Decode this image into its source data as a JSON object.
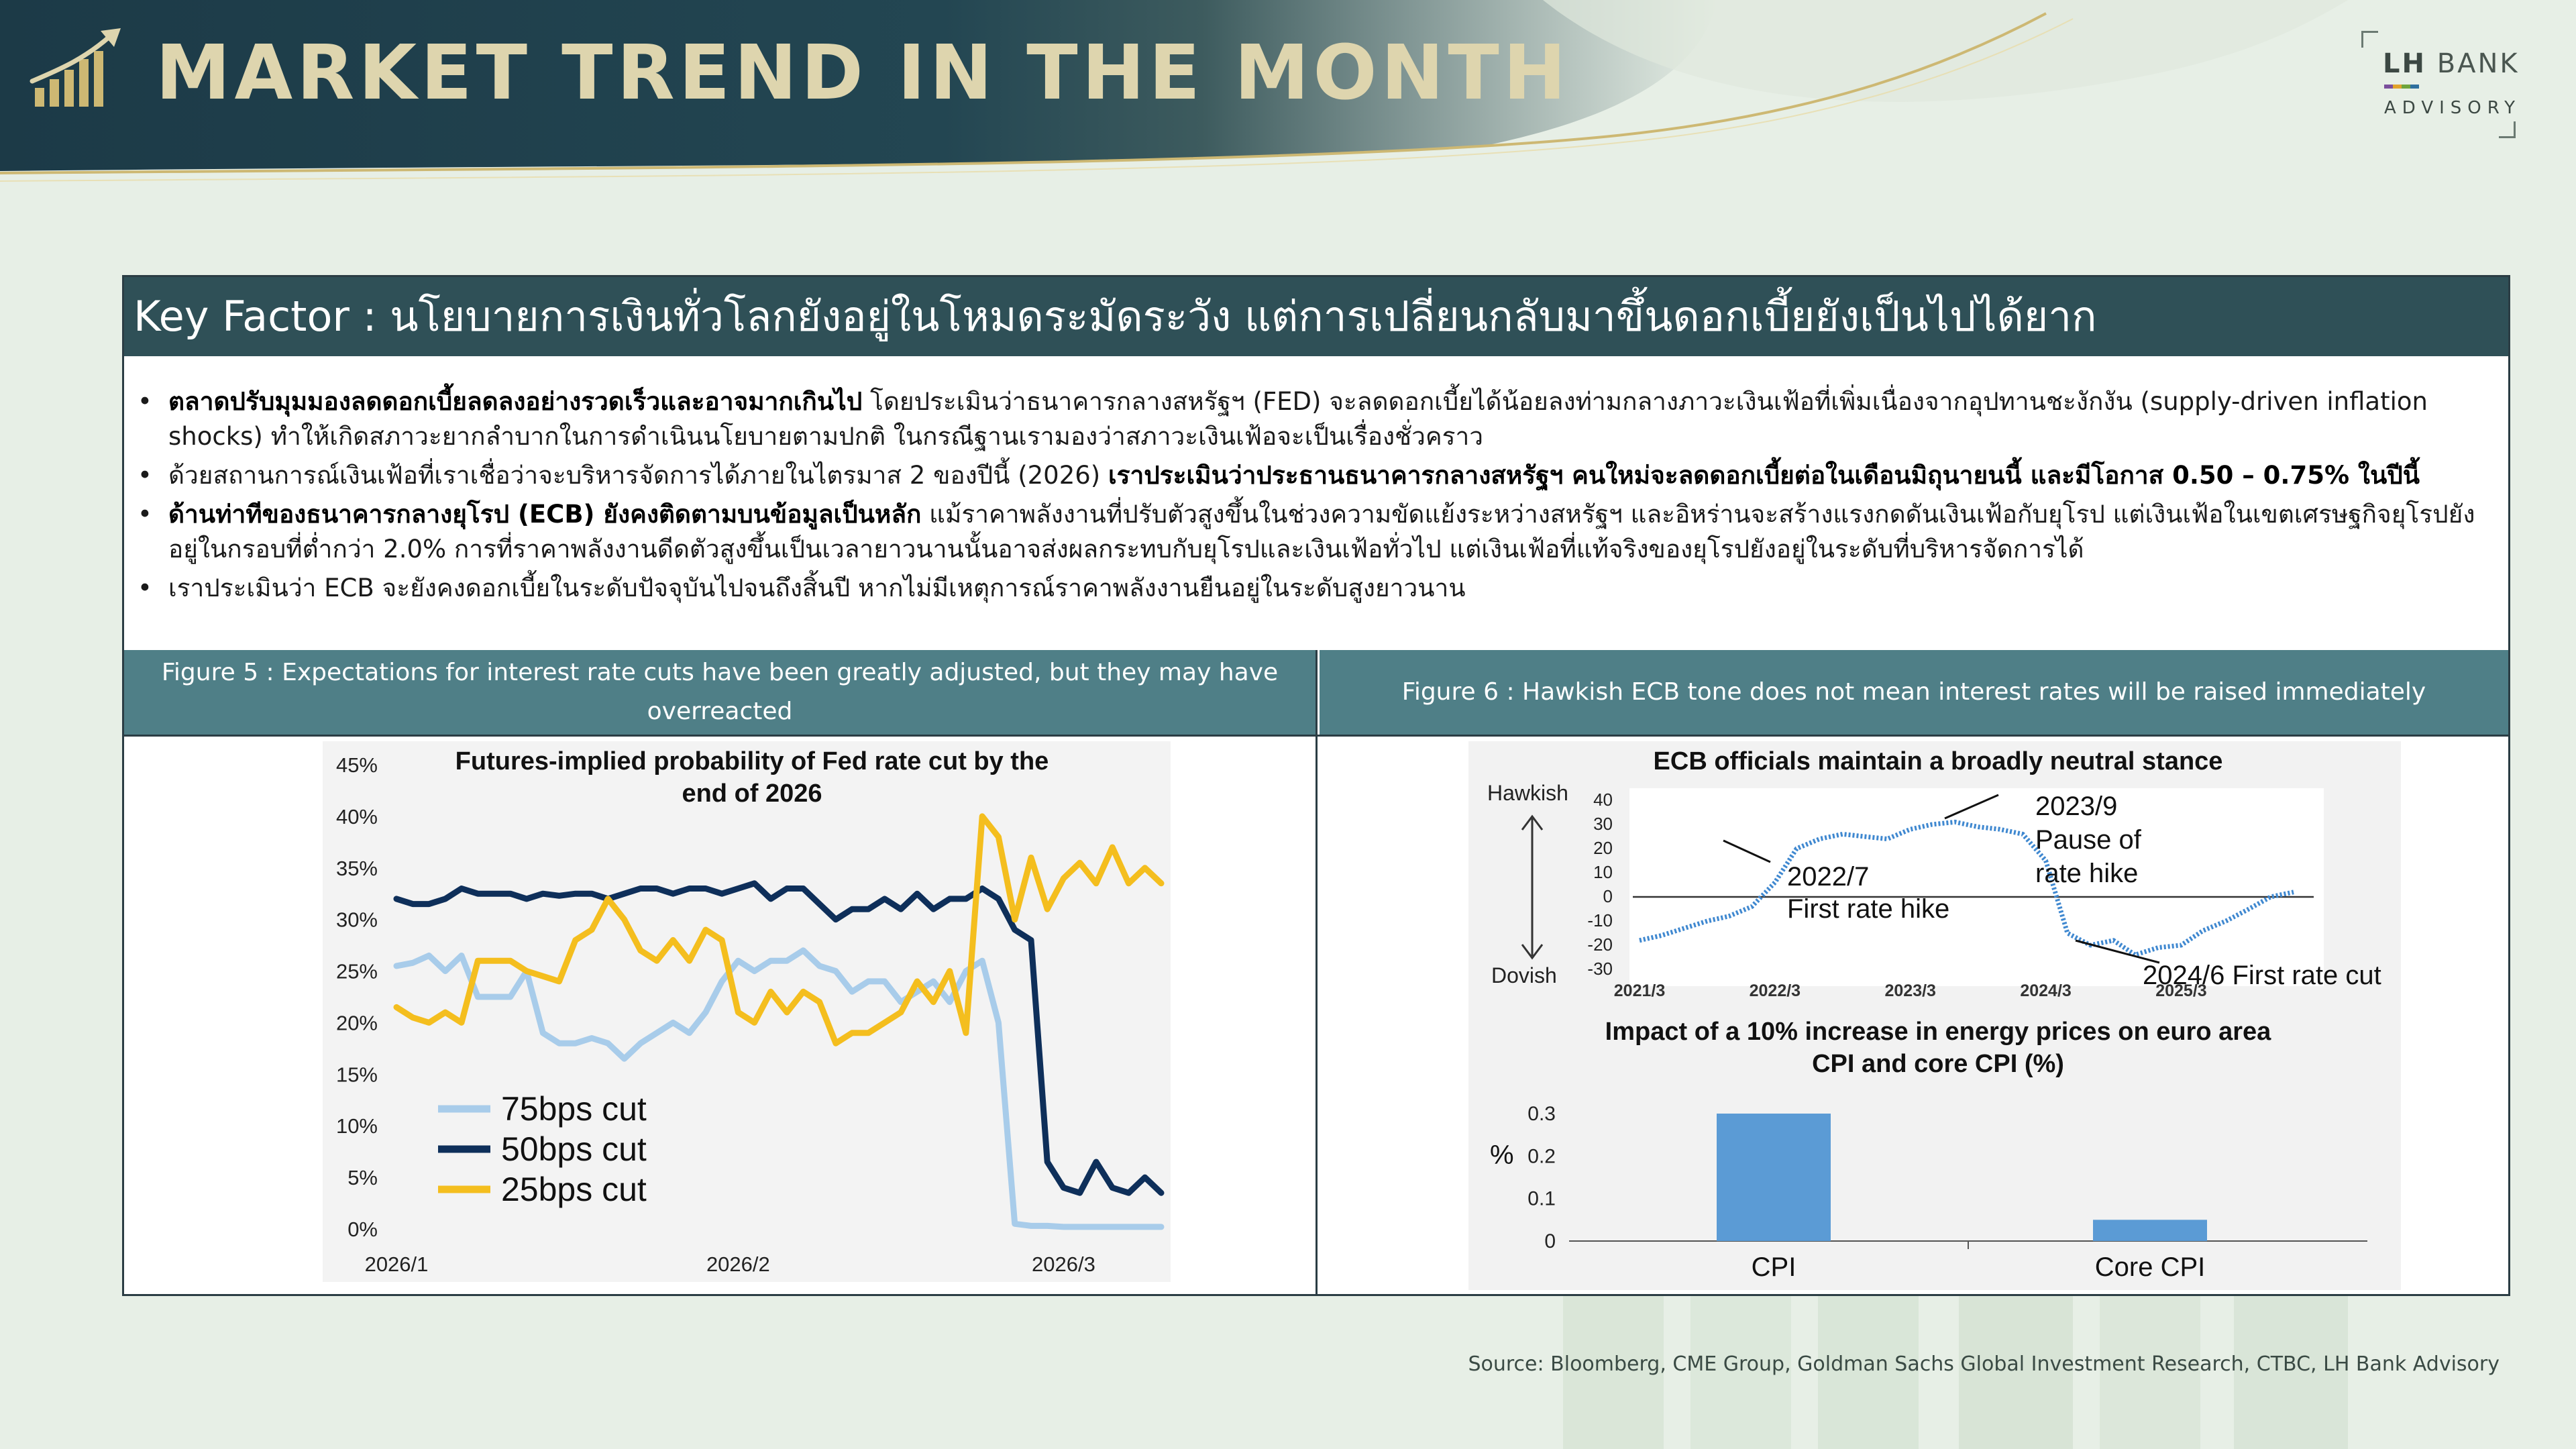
{
  "header": {
    "title": "MARKET TREND IN THE MONTH",
    "brand_lh": "LH",
    "brand_bank": "BANK",
    "brand_advisory": "ADVISORY",
    "brand_colors": [
      "#7a4f9c",
      "#e1a32b",
      "#6fa53c",
      "#2e6f9e"
    ],
    "title_color": "#ded5ae",
    "accent_gold": "#cdb873"
  },
  "key_factor": {
    "text": "Key Factor : นโยบายการเงินทั่วโลกยังอยู่ในโหมดระมัดระวัง แต่การเปลี่ยนกลับมาขึ้นดอกเบี้ยยังเป็นไปได้ยาก",
    "bar_color": "#2f5057"
  },
  "bullets": [
    {
      "bold": "ตลาดปรับมุมมองลดดอกเบี้ยลดลงอย่างรวดเร็วและอาจมากเกินไป",
      "text": " โดยประเมินว่าธนาคารกลางสหรัฐฯ (FED) จะลดดอกเบี้ยได้น้อยลงท่ามกลางภาวะเงินเฟ้อที่เพิ่มเนื่องจากอุปทานชะงักงัน (supply-driven inflation shocks) ทำให้เกิดสภาวะยากลำบากในการดำเนินนโยบายตามปกติ ในกรณีฐานเรามองว่าสภาวะเงินเฟ้อจะเป็นเรื่องชั่วคราว",
      "bold_after": ""
    },
    {
      "bold": "",
      "text": "ด้วยสถานการณ์เงินเฟ้อที่เราเชื่อว่าจะบริหารจัดการได้ภายในไตรมาส 2 ของปีนี้ (2026) ",
      "bold_after": "เราประเมินว่าประธานธนาคารกลางสหรัฐฯ คนใหม่จะลดดอกเบี้ยต่อในเดือนมิถุนายนนี้ และมีโอกาส 0.50 – 0.75% ในปีนี้"
    },
    {
      "bold": "ด้านท่าทีของธนาคารกลางยุโรป (ECB) ยังคงติดตามบนข้อมูลเป็นหลัก",
      "text": " แม้ราคาพลังงานที่ปรับตัวสูงขึ้นในช่วงความขัดแย้งระหว่างสหรัฐฯ และอิหร่านจะสร้างแรงกดดันเงินเฟ้อกับยุโรป แต่เงินเฟ้อในเขตเศรษฐกิจยุโรปยังอยู่ในกรอบที่ต่ำกว่า 2.0% การที่ราคาพลังงานดีดตัวสูงขึ้นเป็นเวลายาวนานนั้นอาจส่งผลกระทบกับยุโรปและเงินเฟ้อทั่วไป แต่เงินเฟ้อที่แท้จริงของยุโรปยังอยู่ในระดับที่บริหารจัดการได้",
      "bold_after": ""
    },
    {
      "bold": "",
      "text": "เราประเมินว่า ECB จะยังคงดอกเบี้ยในระดับปัจจุบันไปจนถึงสิ้นปี หากไม่มีเหตุการณ์ราคาพลังงานยืนอยู่ในระดับสูงยาวนาน",
      "bold_after": ""
    }
  ],
  "bullet_symbol": "•",
  "figure5": {
    "header": "Figure 5 : Expectations for interest rate cuts have been greatly adjusted, but they may have overreacted"
  },
  "figure6": {
    "header": "Figure 6 : Hawkish ECB tone does not mean interest rates will be raised immediately"
  },
  "chart_data": [
    {
      "type": "line",
      "title": "Futures-implied probability of Fed rate cut by the end of 2026",
      "title_lines": [
        "Futures-implied probability of Fed rate cut by the",
        "end of 2026"
      ],
      "xlabel": "",
      "ylabel": "",
      "x_tick_labels": [
        {
          "label": "2026/1",
          "x": 0
        },
        {
          "label": "2026/2",
          "x": 21
        },
        {
          "label": "2026/3",
          "x": 41
        }
      ],
      "x": [
        0,
        1,
        2,
        3,
        4,
        5,
        6,
        7,
        8,
        9,
        10,
        11,
        12,
        13,
        14,
        15,
        16,
        17,
        18,
        19,
        20,
        21,
        22,
        23,
        24,
        25,
        26,
        27,
        28,
        29,
        30,
        31,
        32,
        33,
        34,
        35,
        36,
        37,
        38,
        39,
        40,
        41,
        42,
        43,
        44,
        45,
        46,
        47
      ],
      "ylim": [
        0,
        45
      ],
      "y_ticks": [
        0,
        5,
        10,
        15,
        20,
        25,
        30,
        35,
        40,
        45
      ],
      "y_tick_labels": [
        "0%",
        "5%",
        "10%",
        "15%",
        "20%",
        "25%",
        "30%",
        "35%",
        "40%",
        "45%"
      ],
      "grid": false,
      "legend_position": "bottom-left",
      "series": [
        {
          "name": "75bps cut",
          "color": "#a8ccea",
          "values": [
            25.5,
            25.8,
            26.5,
            25,
            26.5,
            22.5,
            22.5,
            22.5,
            25,
            19,
            18,
            18,
            18.5,
            18,
            16.5,
            18,
            19,
            20,
            19,
            21,
            24,
            26,
            25,
            26,
            26,
            27,
            25.5,
            25,
            23,
            24,
            24,
            22,
            23,
            24,
            22,
            25,
            26,
            20,
            0.5,
            0.3,
            0.3,
            0.2,
            0.2,
            0.2,
            0.2,
            0.2,
            0.2,
            0.2
          ]
        },
        {
          "name": "50bps cut",
          "color": "#0e2f5a",
          "values": [
            32,
            31.5,
            31.5,
            32,
            33,
            32.5,
            32.5,
            32.5,
            32,
            32.5,
            32.3,
            32.5,
            32.5,
            32,
            32.5,
            33,
            33,
            32.5,
            33,
            33,
            32.5,
            33,
            33.5,
            32,
            33,
            33,
            31.5,
            30,
            31,
            31,
            32,
            31,
            32.5,
            31,
            32,
            32,
            33,
            32,
            29,
            28,
            6.5,
            4,
            3.5,
            6.5,
            4,
            3.5,
            5,
            3.5
          ]
        },
        {
          "name": "25bps cut",
          "color": "#f4be1e",
          "values": [
            21.5,
            20.5,
            20,
            21,
            20,
            26,
            26,
            26,
            25,
            24.5,
            24,
            28,
            29,
            32,
            30,
            27,
            26,
            28,
            26,
            29,
            28,
            21,
            20,
            23,
            21,
            23,
            22,
            18,
            19,
            19,
            20,
            21,
            24,
            22,
            25,
            19,
            40,
            38,
            30,
            36,
            31,
            34,
            35.5,
            33.5,
            37,
            33.5,
            35,
            33.5
          ]
        }
      ]
    },
    {
      "type": "line",
      "title": "ECB officials maintain a broadly neutral stance",
      "xlabel": "",
      "ylabel": "",
      "y_side_labels": {
        "top": "Hawkish",
        "bottom": "Dovish"
      },
      "x_tick_labels": [
        "2021/3",
        "2022/3",
        "2023/3",
        "2024/3",
        "2025/3"
      ],
      "x": [
        2021.17,
        2021.33,
        2021.5,
        2021.67,
        2021.83,
        2022.0,
        2022.17,
        2022.33,
        2022.5,
        2022.67,
        2022.83,
        2023.0,
        2023.17,
        2023.33,
        2023.5,
        2023.67,
        2023.83,
        2024.0,
        2024.17,
        2024.33,
        2024.5,
        2024.67,
        2024.83,
        2025.0,
        2025.17,
        2025.33,
        2025.5,
        2025.67,
        2025.83,
        2026.0
      ],
      "ylim": [
        -30,
        40
      ],
      "y_ticks": [
        -30,
        -20,
        -10,
        0,
        10,
        20,
        30,
        40
      ],
      "grid": false,
      "series": [
        {
          "name": "",
          "color": "#3f88d0",
          "values": [
            -18,
            -16,
            -13,
            -10,
            -8,
            -4,
            6,
            20,
            24,
            26,
            25,
            24,
            28,
            30,
            31,
            29,
            28,
            26,
            15,
            -15,
            -20,
            -18,
            -24,
            -21,
            -20,
            -14,
            -10,
            -5,
            0,
            2
          ]
        }
      ],
      "annotations": [
        {
          "line1": "2022/7",
          "line2": "First rate hike",
          "x": 2022.5,
          "y": 24
        },
        {
          "line1": "2023/9",
          "line2": "Pause of",
          "line3": "rate hike",
          "x": 2023.67,
          "y": 29
        },
        {
          "line1": "2024/6 First rate cut",
          "x": 2024.5,
          "y": -20
        }
      ]
    },
    {
      "type": "bar",
      "title": "Impact of a 10% increase in energy prices on euro area CPI and core CPI (%)",
      "title_lines": [
        "Impact of a 10% increase in energy prices on euro area",
        "CPI and core CPI (%)"
      ],
      "categories": [
        "CPI",
        "Core CPI"
      ],
      "values": [
        0.3,
        0.05
      ],
      "ylabel": "%",
      "xlabel": "",
      "ylim": [
        0,
        0.3
      ],
      "y_ticks": [
        0,
        0.1,
        0.2,
        0.3
      ],
      "y_tick_labels": [
        "0",
        "0.1",
        "0.2",
        "0.3"
      ],
      "color": "#5b9bd5",
      "grid": false
    }
  ],
  "source": "Source: Bloomberg, CME Group, Goldman Sachs Global Investment Research, CTBC, LH Bank Advisory"
}
